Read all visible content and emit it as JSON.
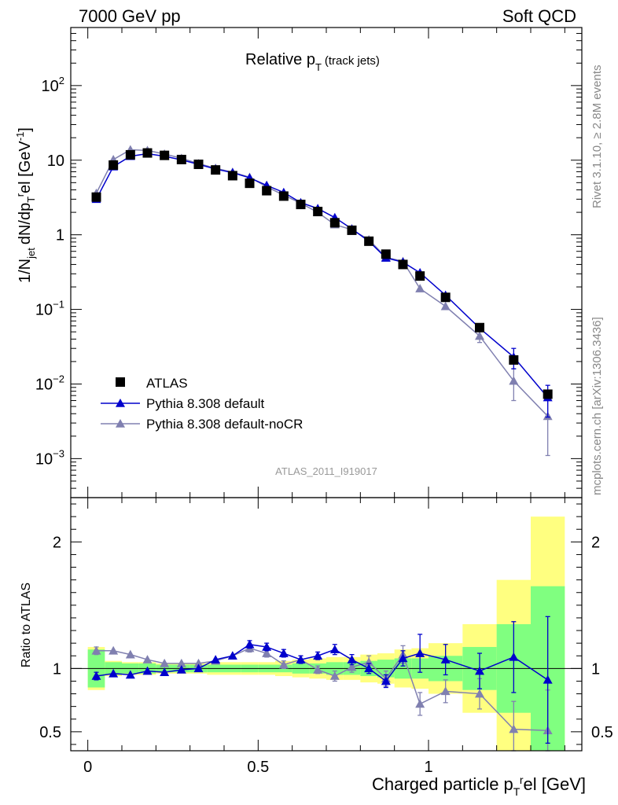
{
  "header": {
    "left": "7000 GeV pp",
    "right": "Soft QCD"
  },
  "side_labels": {
    "rivet": "Rivet 3.1.10, ≥ 2.8M events",
    "mcplots": "mcplots.cern.ch [arXiv:1306.3436]"
  },
  "chart_data": [
    {
      "type": "scatter",
      "title": "Relative p_T (track jets)",
      "analysis_label": "ATLAS_2011_I919017",
      "ylabel": "1/N_jet dN/dp_T^rel [GeV^-1]",
      "yscale": "log",
      "ylim": [
        0.0003,
        600
      ],
      "xlim": [
        -0.05,
        1.45
      ],
      "yticks": [
        {
          "value": 0.001,
          "mant": "10",
          "exp": "−3"
        },
        {
          "value": 0.01,
          "mant": "10",
          "exp": "−2"
        },
        {
          "value": 0.1,
          "mant": "10",
          "exp": "−1"
        },
        {
          "value": 1,
          "mant": "1",
          "exp": ""
        },
        {
          "value": 10,
          "mant": "10",
          "exp": ""
        },
        {
          "value": 100,
          "mant": "10",
          "exp": "2"
        }
      ],
      "legend": {
        "position": "bottom-left",
        "entries": [
          "ATLAS",
          "Pythia 8.308 default",
          "Pythia 8.308 default-noCR"
        ]
      },
      "x": [
        0.025,
        0.075,
        0.125,
        0.175,
        0.225,
        0.275,
        0.325,
        0.375,
        0.425,
        0.475,
        0.525,
        0.575,
        0.625,
        0.675,
        0.725,
        0.775,
        0.825,
        0.875,
        0.925,
        0.975,
        1.05,
        1.15,
        1.25,
        1.35
      ],
      "x_halfwidth": [
        0.025,
        0.025,
        0.025,
        0.025,
        0.025,
        0.025,
        0.025,
        0.025,
        0.025,
        0.025,
        0.025,
        0.025,
        0.025,
        0.025,
        0.025,
        0.025,
        0.025,
        0.025,
        0.025,
        0.025,
        0.05,
        0.05,
        0.05,
        0.05
      ],
      "series": [
        {
          "name": "ATLAS",
          "color": "#000000",
          "marker": "square",
          "values": [
            3.2,
            8.6,
            11.8,
            12.5,
            11.6,
            10.2,
            8.8,
            7.4,
            6.2,
            4.9,
            3.9,
            3.3,
            2.55,
            2.05,
            1.45,
            1.15,
            0.82,
            0.55,
            0.4,
            0.28,
            0.145,
            0.057,
            0.021,
            0.0073
          ]
        },
        {
          "name": "Pythia 8.308 default",
          "color": "#0000cc",
          "marker": "triangle",
          "values": [
            3.0,
            8.2,
            11.3,
            12.2,
            11.3,
            10.1,
            8.8,
            7.6,
            6.8,
            5.8,
            4.6,
            3.7,
            2.7,
            2.25,
            1.7,
            1.2,
            0.82,
            0.49,
            0.43,
            0.31,
            0.155,
            0.056,
            0.023,
            0.0066
          ],
          "errors": [
            0.05,
            0.1,
            0.12,
            0.12,
            0.11,
            0.1,
            0.09,
            0.08,
            0.07,
            0.06,
            0.05,
            0.04,
            0.03,
            0.03,
            0.02,
            0.02,
            0.012,
            0.008,
            0.008,
            0.006,
            0.004,
            0.003,
            0.007,
            0.003
          ]
        },
        {
          "name": "Pythia 8.308 default-noCR",
          "color": "#8080b0",
          "marker": "triangle",
          "values": [
            3.6,
            10.2,
            13.8,
            13.5,
            12.1,
            10.6,
            9.0,
            7.8,
            6.9,
            5.9,
            4.4,
            3.4,
            2.65,
            2.0,
            1.37,
            1.17,
            0.86,
            0.5,
            0.44,
            0.19,
            0.11,
            0.044,
            0.011,
            0.0037
          ],
          "errors": [
            0.05,
            0.1,
            0.12,
            0.12,
            0.11,
            0.1,
            0.09,
            0.08,
            0.07,
            0.06,
            0.05,
            0.04,
            0.03,
            0.03,
            0.02,
            0.02,
            0.012,
            0.008,
            0.008,
            0.012,
            0.006,
            0.008,
            0.005,
            0.0026
          ]
        }
      ]
    },
    {
      "type": "scatter",
      "ylabel": "Ratio to ATLAS",
      "xlabel": "Charged particle p_T^rel [GeV]",
      "ylim": [
        0.35,
        2.35
      ],
      "xlim": [
        -0.05,
        1.45
      ],
      "yticks": [
        0.5,
        1,
        2
      ],
      "xticks": [
        0,
        0.5,
        1
      ],
      "xtick_labels": [
        "0",
        "0.5",
        "1"
      ],
      "ytick_labels": [
        "0.5",
        "1",
        "2"
      ],
      "bands": {
        "green_halfwidth": [
          0.15,
          0.05,
          0.04,
          0.04,
          0.03,
          0.03,
          0.03,
          0.03,
          0.03,
          0.03,
          0.03,
          0.03,
          0.04,
          0.04,
          0.05,
          0.05,
          0.06,
          0.07,
          0.08,
          0.08,
          0.1,
          0.17,
          0.35,
          0.65
        ],
        "yellow_halfwidth": [
          0.17,
          0.06,
          0.05,
          0.05,
          0.04,
          0.04,
          0.04,
          0.05,
          0.05,
          0.05,
          0.05,
          0.06,
          0.07,
          0.08,
          0.09,
          0.09,
          0.11,
          0.12,
          0.15,
          0.16,
          0.2,
          0.35,
          0.7,
          1.2
        ]
      },
      "series": [
        {
          "name": "Pythia 8.308 default",
          "color": "#0000cc",
          "values": [
            0.94,
            0.96,
            0.95,
            0.98,
            0.97,
            0.99,
            1.0,
            1.07,
            1.1,
            1.19,
            1.17,
            1.12,
            1.07,
            1.1,
            1.15,
            1.07,
            1.0,
            0.9,
            1.08,
            1.12,
            1.07,
            0.98,
            1.09,
            0.91
          ],
          "errors": [
            0.03,
            0.02,
            0.02,
            0.02,
            0.02,
            0.02,
            0.02,
            0.02,
            0.02,
            0.03,
            0.03,
            0.03,
            0.03,
            0.03,
            0.04,
            0.04,
            0.04,
            0.05,
            0.06,
            0.15,
            0.12,
            0.14,
            0.28,
            0.5
          ]
        },
        {
          "name": "Pythia 8.308 default-noCR",
          "color": "#8080b0",
          "values": [
            1.14,
            1.14,
            1.11,
            1.07,
            1.04,
            1.04,
            1.04,
            1.06,
            1.1,
            1.16,
            1.12,
            1.03,
            1.07,
            0.99,
            0.94,
            1.01,
            1.05,
            0.92,
            1.11,
            0.72,
            0.82,
            0.8,
            0.52,
            0.51
          ],
          "errors": [
            0.03,
            0.02,
            0.02,
            0.02,
            0.02,
            0.02,
            0.02,
            0.02,
            0.02,
            0.03,
            0.03,
            0.03,
            0.03,
            0.03,
            0.04,
            0.04,
            0.05,
            0.06,
            0.07,
            0.09,
            0.09,
            0.12,
            0.22,
            0.32
          ]
        }
      ]
    }
  ]
}
